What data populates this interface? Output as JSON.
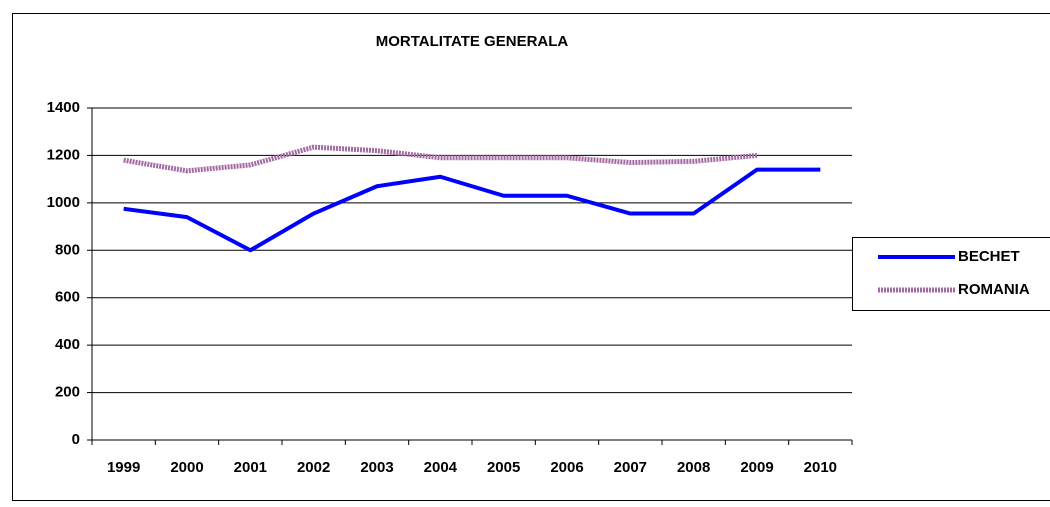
{
  "chart_data": {
    "type": "line",
    "title": "MORTALITATE GENERALA",
    "categories": [
      "1999",
      "2000",
      "2001",
      "2002",
      "2003",
      "2004",
      "2005",
      "2006",
      "2007",
      "2008",
      "2009",
      "2010"
    ],
    "series": [
      {
        "name": "BECHET",
        "color": "#0000ff",
        "values": [
          975,
          940,
          800,
          955,
          1070,
          1110,
          1030,
          1030,
          955,
          955,
          1140,
          1140
        ]
      },
      {
        "name": "ROMANIA",
        "color": "#a46aa4",
        "values": [
          1180,
          1135,
          1160,
          1235,
          1220,
          1190,
          1190,
          1190,
          1170,
          1175,
          1200,
          null
        ]
      }
    ],
    "ylim": [
      0,
      1400
    ],
    "yticks": [
      0,
      200,
      400,
      600,
      800,
      1000,
      1200,
      1400
    ],
    "grid": true,
    "legend": "right"
  }
}
